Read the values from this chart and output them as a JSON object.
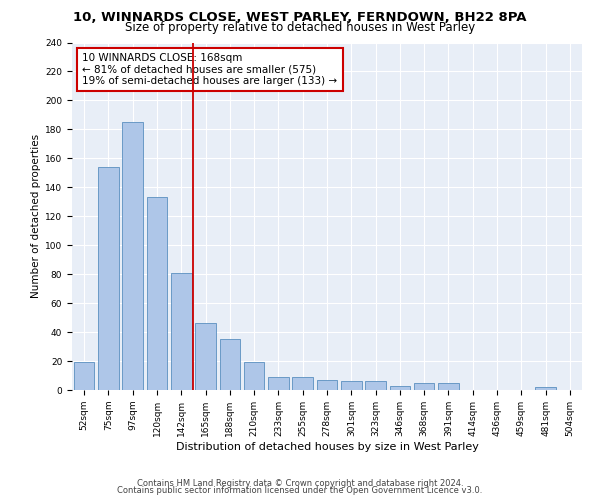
{
  "title1": "10, WINNARDS CLOSE, WEST PARLEY, FERNDOWN, BH22 8PA",
  "title2": "Size of property relative to detached houses in West Parley",
  "xlabel": "Distribution of detached houses by size in West Parley",
  "ylabel": "Number of detached properties",
  "categories": [
    "52sqm",
    "75sqm",
    "97sqm",
    "120sqm",
    "142sqm",
    "165sqm",
    "188sqm",
    "210sqm",
    "233sqm",
    "255sqm",
    "278sqm",
    "301sqm",
    "323sqm",
    "346sqm",
    "368sqm",
    "391sqm",
    "414sqm",
    "436sqm",
    "459sqm",
    "481sqm",
    "504sqm"
  ],
  "values": [
    19,
    154,
    185,
    133,
    81,
    46,
    35,
    19,
    9,
    9,
    7,
    6,
    6,
    3,
    5,
    5,
    0,
    0,
    0,
    2,
    0
  ],
  "bar_color": "#aec6e8",
  "bar_edge_color": "#5a8fc0",
  "vline_index": 5,
  "vline_color": "#cc0000",
  "annotation_text": "10 WINNARDS CLOSE: 168sqm\n← 81% of detached houses are smaller (575)\n19% of semi-detached houses are larger (133) →",
  "annotation_box_color": "#ffffff",
  "annotation_box_edge": "#cc0000",
  "ylim": [
    0,
    240
  ],
  "yticks": [
    0,
    20,
    40,
    60,
    80,
    100,
    120,
    140,
    160,
    180,
    200,
    220,
    240
  ],
  "background_color": "#e8eef7",
  "footer1": "Contains HM Land Registry data © Crown copyright and database right 2024.",
  "footer2": "Contains public sector information licensed under the Open Government Licence v3.0.",
  "title1_fontsize": 9.5,
  "title2_fontsize": 8.5,
  "xlabel_fontsize": 8,
  "ylabel_fontsize": 7.5,
  "tick_fontsize": 6.5,
  "ann_fontsize": 7.5,
  "footer_fontsize": 6,
  "bar_width": 0.85
}
